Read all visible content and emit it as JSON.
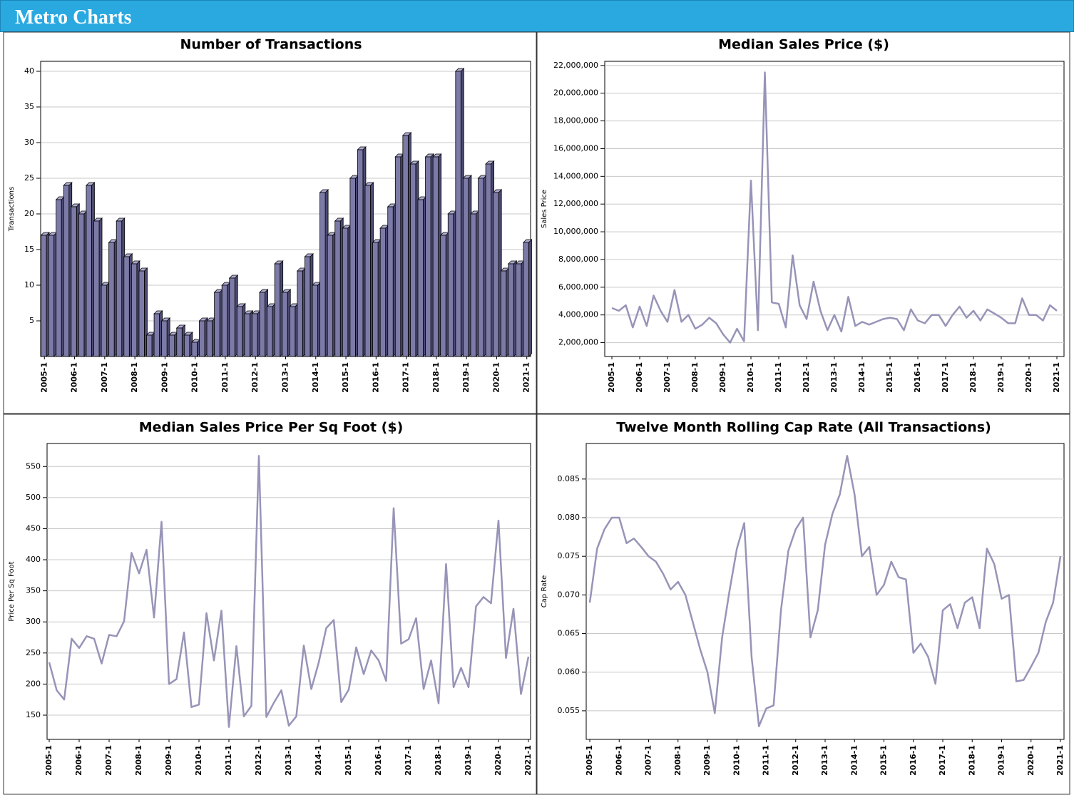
{
  "header": {
    "title": "Metro Charts"
  },
  "chart_data": [
    {
      "type": "bar",
      "title": "Number of Transactions",
      "y_label": "Transactions",
      "color": "#7c7aa6",
      "categories": [
        "2005-1",
        null,
        null,
        null,
        "2006-1",
        null,
        null,
        null,
        "2007-1",
        null,
        null,
        null,
        "2008-1",
        null,
        null,
        null,
        "2009-1",
        null,
        null,
        null,
        "2010-1",
        null,
        null,
        null,
        "2011-1",
        null,
        null,
        null,
        "2012-1",
        null,
        null,
        null,
        "2013-1",
        null,
        null,
        null,
        "2014-1",
        null,
        null,
        null,
        "2015-1",
        null,
        null,
        null,
        "2016-1",
        null,
        null,
        null,
        "2017-1",
        null,
        null,
        null,
        "2018-1",
        null,
        null,
        null,
        "2019-1",
        null,
        null,
        null,
        "2020-1",
        null,
        null,
        null,
        "2021-1"
      ],
      "values": [
        17,
        17,
        22,
        24,
        21,
        20,
        24,
        19,
        10,
        16,
        19,
        14,
        13,
        12,
        3,
        6,
        5,
        3,
        4,
        3,
        2,
        5,
        5,
        9,
        10,
        11,
        7,
        6,
        6,
        9,
        7,
        13,
        9,
        7,
        12,
        14,
        10,
        23,
        17,
        19,
        18,
        25,
        29,
        24,
        16,
        18,
        21,
        28,
        31,
        27,
        22,
        28,
        28,
        17,
        20,
        40,
        25,
        20,
        25,
        27,
        23,
        12,
        13,
        13,
        16
      ],
      "ylim": [
        0,
        41.4
      ],
      "yticks": [
        5,
        10,
        15,
        20,
        25,
        30,
        35,
        40
      ],
      "grid": true
    },
    {
      "type": "line",
      "title": "Median Sales Price ($)",
      "y_label": "Sales Price",
      "color": "#9794b8",
      "categories": [
        "2005-1",
        null,
        null,
        null,
        "2006-1",
        null,
        null,
        null,
        "2007-1",
        null,
        null,
        null,
        "2008-1",
        null,
        null,
        null,
        "2009-1",
        null,
        null,
        null,
        "2010-1",
        null,
        null,
        null,
        "2011-1",
        null,
        null,
        null,
        "2012-1",
        null,
        null,
        null,
        "2013-1",
        null,
        null,
        null,
        "2014-1",
        null,
        null,
        null,
        "2015-1",
        null,
        null,
        null,
        "2016-1",
        null,
        null,
        null,
        "2017-1",
        null,
        null,
        null,
        "2018-1",
        null,
        null,
        null,
        "2019-1",
        null,
        null,
        null,
        "2020-1",
        null,
        null,
        null,
        "2021-1"
      ],
      "values": [
        4500000,
        4300000,
        4700000,
        3100000,
        4600000,
        3200000,
        5400000,
        4300000,
        3500000,
        5800000,
        3500000,
        4000000,
        3000000,
        3300000,
        3800000,
        3400000,
        2600000,
        2000000,
        3000000,
        2100000,
        13700000,
        2900000,
        21500000,
        4900000,
        4800000,
        3100000,
        8300000,
        4700000,
        3700000,
        6400000,
        4300000,
        2900000,
        4000000,
        2800000,
        5300000,
        3200000,
        3500000,
        3300000,
        3500000,
        3700000,
        3800000,
        3700000,
        2900000,
        4400000,
        3600000,
        3400000,
        4000000,
        4000000,
        3200000,
        4000000,
        4600000,
        3800000,
        4300000,
        3600000,
        4400000,
        4100000,
        3800000,
        3400000,
        3400000,
        5200000,
        4000000,
        4000000,
        3600000,
        4700000,
        4300000
      ],
      "ylim": [
        1000000,
        22300000
      ],
      "yticks": [
        {
          "value": 2000000,
          "label": "2,000,000"
        },
        {
          "value": 4000000,
          "label": "4,000,000"
        },
        {
          "value": 6000000,
          "label": "6,000,000"
        },
        {
          "value": 8000000,
          "label": "8,000,000"
        },
        {
          "value": 10000000,
          "label": "10,000,000"
        },
        {
          "value": 12000000,
          "label": "12,000,000"
        },
        {
          "value": 14000000,
          "label": "14,000,000"
        },
        {
          "value": 16000000,
          "label": "16,000,000"
        },
        {
          "value": 18000000,
          "label": "18,000,000"
        },
        {
          "value": 20000000,
          "label": "20,000,000"
        },
        {
          "value": 22000000,
          "label": "22,000,000"
        }
      ],
      "grid": true
    },
    {
      "type": "line",
      "title": "Median Sales Price Per Sq Foot ($)",
      "y_label": "Price Per Sq Foot",
      "color": "#9794b8",
      "categories": [
        "2005-1",
        null,
        null,
        null,
        "2006-1",
        null,
        null,
        null,
        "2007-1",
        null,
        null,
        null,
        "2008-1",
        null,
        null,
        null,
        "2009-1",
        null,
        null,
        null,
        "2010-1",
        null,
        null,
        null,
        "2011-1",
        null,
        null,
        null,
        "2012-1",
        null,
        null,
        null,
        "2013-1",
        null,
        null,
        null,
        "2014-1",
        null,
        null,
        null,
        "2015-1",
        null,
        null,
        null,
        "2016-1",
        null,
        null,
        null,
        "2017-1",
        null,
        null,
        null,
        "2018-1",
        null,
        null,
        null,
        "2019-1",
        null,
        null,
        null,
        "2020-1",
        null,
        null,
        null,
        "2021-1"
      ],
      "values": [
        235,
        190,
        175,
        273,
        258,
        277,
        273,
        233,
        279,
        277,
        301,
        411,
        378,
        416,
        307,
        461,
        200,
        208,
        283,
        163,
        167,
        314,
        238,
        318,
        131,
        261,
        148,
        165,
        567,
        147,
        170,
        190,
        133,
        148,
        262,
        192,
        235,
        290,
        303,
        171,
        191,
        259,
        216,
        254,
        238,
        205,
        483,
        265,
        272,
        306,
        192,
        238,
        169,
        393,
        195,
        226,
        195,
        325,
        340,
        330,
        463,
        242,
        321,
        184,
        244
      ],
      "ylim": [
        111,
        587
      ],
      "yticks": [
        150,
        200,
        250,
        300,
        350,
        400,
        450,
        500,
        550
      ],
      "grid": true
    },
    {
      "type": "line",
      "title": "Twelve Month Rolling Cap Rate (All Transactions)",
      "y_label": "Cap Rate",
      "color": "#9794b8",
      "categories": [
        "2005-1",
        null,
        null,
        null,
        "2006-1",
        null,
        null,
        null,
        "2007-1",
        null,
        null,
        null,
        "2008-1",
        null,
        null,
        null,
        "2009-1",
        null,
        null,
        null,
        "2010-1",
        null,
        null,
        null,
        "2011-1",
        null,
        null,
        null,
        "2012-1",
        null,
        null,
        null,
        "2013-1",
        null,
        null,
        null,
        "2014-1",
        null,
        null,
        null,
        "2015-1",
        null,
        null,
        null,
        "2016-1",
        null,
        null,
        null,
        "2017-1",
        null,
        null,
        null,
        "2018-1",
        null,
        null,
        null,
        "2019-1",
        null,
        null,
        null,
        "2020-1",
        null,
        null,
        null,
        "2021-1"
      ],
      "values": [
        0.069,
        0.076,
        0.0785,
        0.08,
        0.08,
        0.0767,
        0.0773,
        0.0762,
        0.075,
        0.0743,
        0.0727,
        0.0707,
        0.0717,
        0.07,
        0.0665,
        0.063,
        0.06,
        0.0547,
        0.0645,
        0.0705,
        0.076,
        0.0793,
        0.062,
        0.053,
        0.0553,
        0.0557,
        0.068,
        0.0757,
        0.0785,
        0.08,
        0.0645,
        0.068,
        0.0765,
        0.0805,
        0.083,
        0.088,
        0.083,
        0.075,
        0.0762,
        0.07,
        0.0713,
        0.0743,
        0.0723,
        0.072,
        0.0625,
        0.0637,
        0.062,
        0.0585,
        0.068,
        0.0688,
        0.0657,
        0.069,
        0.0697,
        0.0657,
        0.076,
        0.074,
        0.0695,
        0.07,
        0.0588,
        0.059,
        0.0607,
        0.0625,
        0.0665,
        0.069,
        0.075
      ],
      "ylim": [
        0.0513,
        0.0896
      ],
      "yticks": [
        0.055,
        {
          "value": 0.06,
          "label": "0.060"
        },
        0.065,
        {
          "value": 0.07,
          "label": "0.070"
        },
        0.075,
        {
          "value": 0.08,
          "label": "0.080"
        },
        0.085
      ],
      "grid": true
    }
  ]
}
